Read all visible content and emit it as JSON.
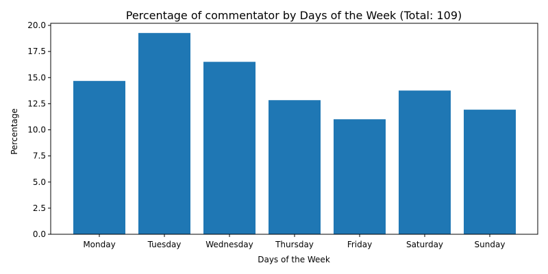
{
  "chart_data": {
    "type": "bar",
    "title": "Percentage of commentator by Days of the Week (Total: 109)",
    "xlabel": "Days of the Week",
    "ylabel": "Percentage",
    "categories": [
      "Monday",
      "Tuesday",
      "Wednesday",
      "Thursday",
      "Friday",
      "Saturday",
      "Sunday"
    ],
    "values": [
      14.68,
      19.27,
      16.51,
      12.84,
      11.01,
      13.76,
      11.93
    ],
    "ylim": [
      0,
      20.2
    ],
    "yticks": [
      "0.0",
      "2.5",
      "5.0",
      "7.5",
      "10.0",
      "12.5",
      "15.0",
      "17.5",
      "20.0"
    ],
    "grid": false,
    "legend": "none",
    "bar_color": "#1f77b4"
  }
}
